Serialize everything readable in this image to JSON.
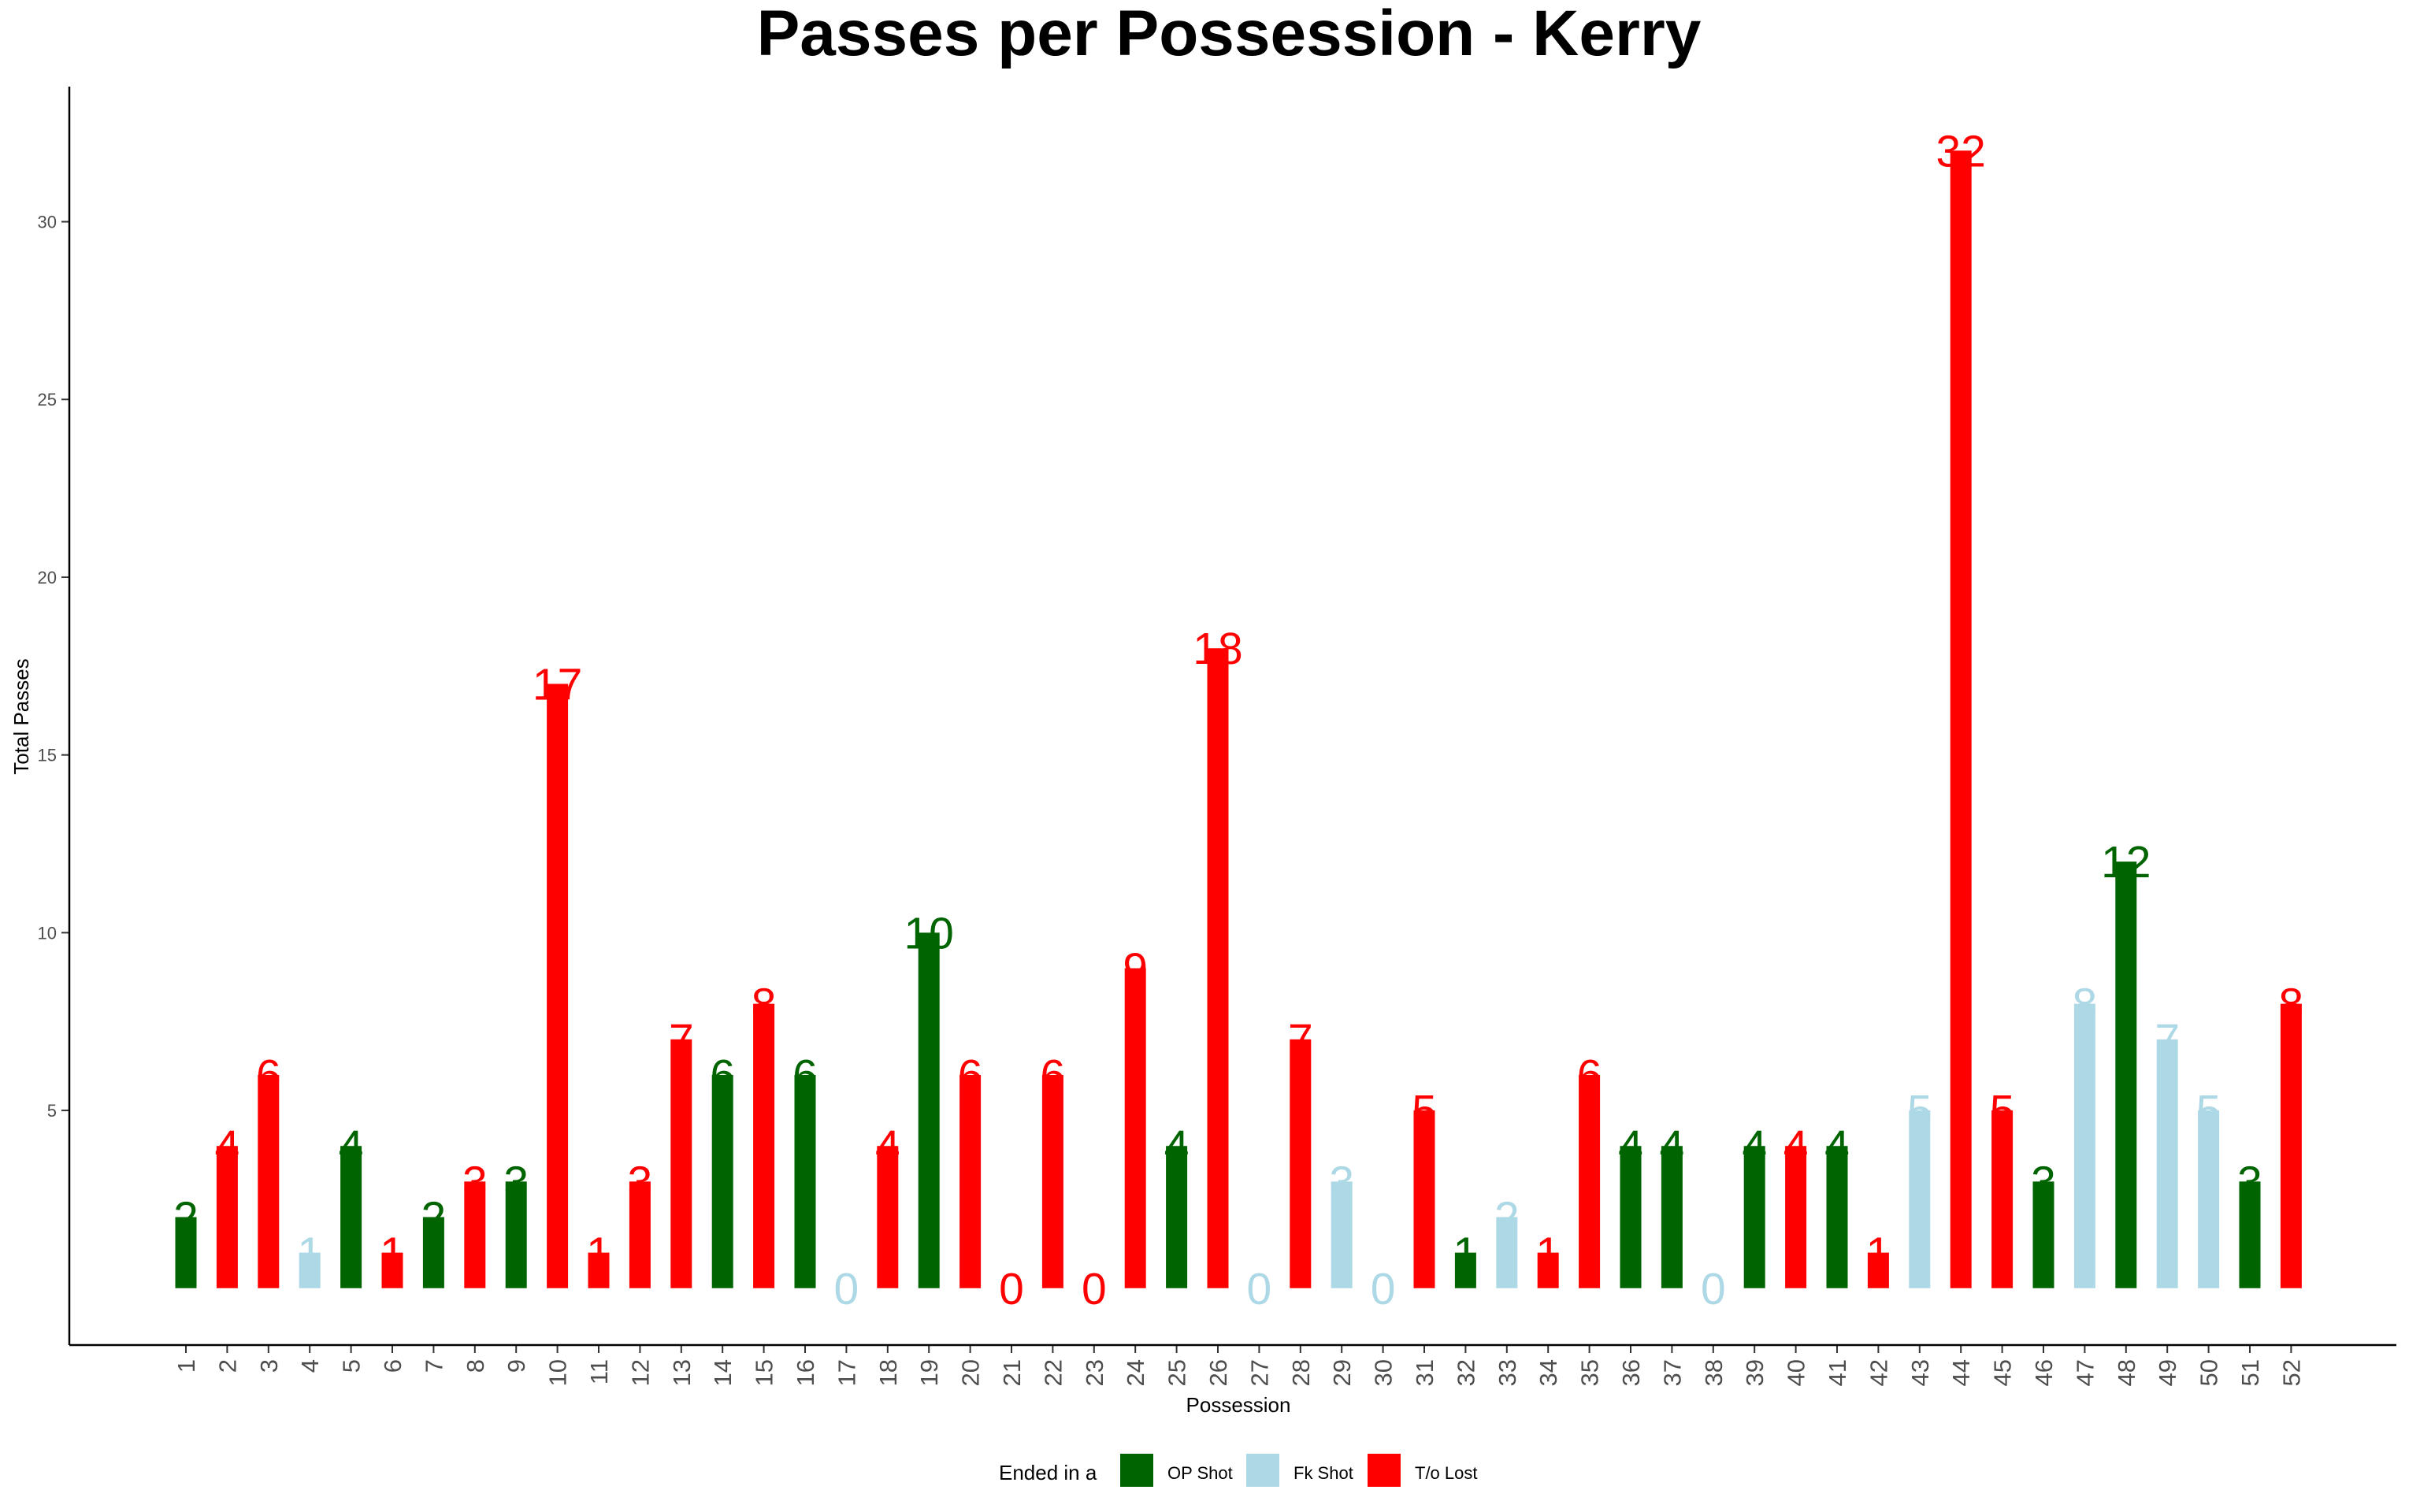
{
  "chart_data": {
    "type": "bar",
    "title": "Passes per Possession - Kerry",
    "xlabel": "Possession",
    "ylabel": "Total Passes",
    "yticks": [
      5,
      10,
      15,
      20,
      25,
      30
    ],
    "ylim": [
      -1.6,
      33.8
    ],
    "grid": false,
    "legend": {
      "position": "bottom",
      "title": "Ended in a",
      "items": [
        {
          "key": "op",
          "label": "OP Shot",
          "color": "#006400"
        },
        {
          "key": "fk",
          "label": "Fk Shot",
          "color": "#ADD8E6"
        },
        {
          "key": "to",
          "label": "T/o Lost",
          "color": "#FF0000"
        }
      ]
    },
    "categories": [
      "1",
      "2",
      "3",
      "4",
      "5",
      "6",
      "7",
      "8",
      "9",
      "10",
      "11",
      "12",
      "13",
      "14",
      "15",
      "16",
      "17",
      "18",
      "19",
      "20",
      "21",
      "22",
      "23",
      "24",
      "25",
      "26",
      "27",
      "28",
      "29",
      "30",
      "31",
      "32",
      "33",
      "34",
      "35",
      "36",
      "37",
      "38",
      "39",
      "40",
      "41",
      "42",
      "43",
      "44",
      "45",
      "46",
      "47",
      "48",
      "49",
      "50",
      "51",
      "52"
    ],
    "values": [
      2,
      4,
      6,
      1,
      4,
      1,
      2,
      3,
      3,
      17,
      1,
      3,
      7,
      6,
      8,
      6,
      0,
      4,
      10,
      6,
      0,
      6,
      0,
      9,
      4,
      18,
      0,
      7,
      3,
      0,
      5,
      1,
      2,
      1,
      6,
      4,
      4,
      0,
      4,
      4,
      4,
      1,
      5,
      32,
      5,
      3,
      8,
      12,
      7,
      5,
      3,
      8
    ],
    "outcome": [
      "op",
      "to",
      "to",
      "fk",
      "op",
      "to",
      "op",
      "to",
      "op",
      "to",
      "to",
      "to",
      "to",
      "op",
      "to",
      "op",
      "fk",
      "to",
      "op",
      "to",
      "to",
      "to",
      "to",
      "to",
      "op",
      "to",
      "fk",
      "to",
      "fk",
      "fk",
      "to",
      "op",
      "fk",
      "to",
      "to",
      "op",
      "op",
      "fk",
      "op",
      "to",
      "op",
      "to",
      "fk",
      "to",
      "to",
      "op",
      "fk",
      "op",
      "fk",
      "fk",
      "op",
      "to"
    ]
  }
}
